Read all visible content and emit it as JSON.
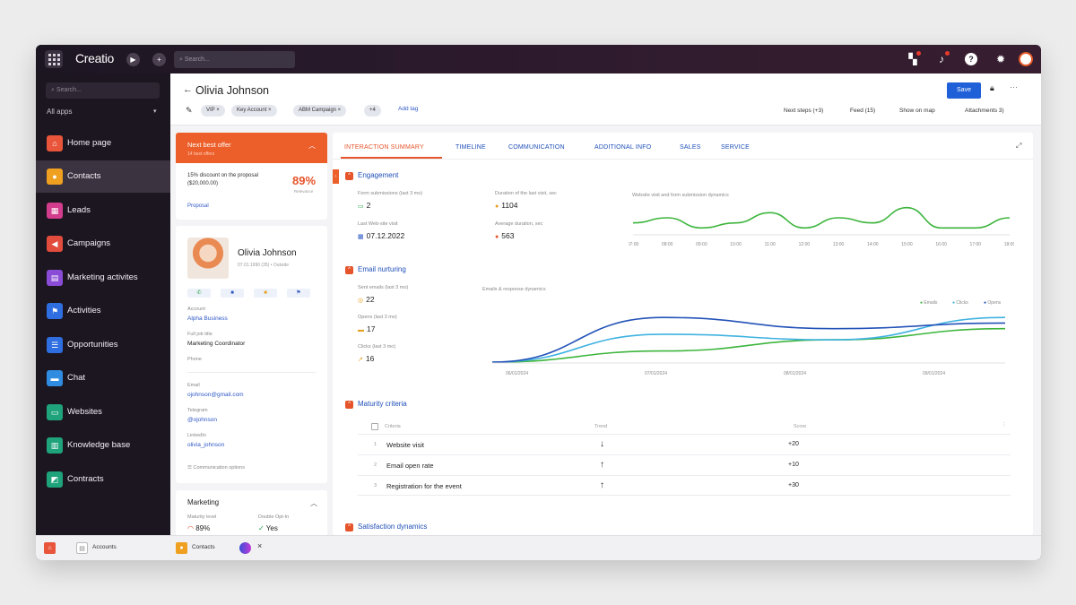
{
  "topbar": {
    "logo": "Creatio",
    "search_placeholder": "Search...",
    "play_glyph": "▶",
    "plus_glyph": "+"
  },
  "sidebar": {
    "search_placeholder": "Search...",
    "all_apps": "All apps",
    "items": [
      {
        "label": "Home page",
        "icon": "home-icon",
        "color": "#e8553b",
        "glyph": "⌂"
      },
      {
        "label": "Contacts",
        "icon": "contact-icon",
        "color": "#f0a020",
        "glyph": "●"
      },
      {
        "label": "Leads",
        "icon": "leads-icon",
        "color": "#d23c8c",
        "glyph": "▦"
      },
      {
        "label": "Campaigns",
        "icon": "megaphone-icon",
        "color": "#e24c3c",
        "glyph": "◀"
      },
      {
        "label": "Marketing activites",
        "icon": "calendar-icon",
        "color": "#8a4bd6",
        "glyph": "▤"
      },
      {
        "label": "Activities",
        "icon": "flag-icon",
        "color": "#2f6ee0",
        "glyph": "⚑"
      },
      {
        "label": "Opportunities",
        "icon": "list-icon",
        "color": "#2f6ee0",
        "glyph": "☰"
      },
      {
        "label": "Chat",
        "icon": "chat-icon",
        "color": "#2f8ce0",
        "glyph": "▬"
      },
      {
        "label": "Websites",
        "icon": "window-icon",
        "color": "#1ea37a",
        "glyph": "▭"
      },
      {
        "label": "Knowledge base",
        "icon": "book-icon",
        "color": "#1ea37a",
        "glyph": "▥"
      },
      {
        "label": "Contracts",
        "icon": "contract-icon",
        "color": "#1ea37a",
        "glyph": "◩"
      }
    ]
  },
  "header": {
    "back": "←",
    "title": "Olivia Johnson",
    "tags": [
      "VIP ×",
      "Key Account ×",
      "ABM Campaign ×",
      "+4"
    ],
    "add_tag": "Add tag",
    "links": [
      "Next steps (+3)",
      "Feed (15)",
      "Show on map",
      "Attachments 3)"
    ],
    "save": "Save"
  },
  "next_best_offer": {
    "title": "Next best offer",
    "subtitle": "14 best offers",
    "offer": "15% discount on the proposal ($20,000.00)",
    "percent": "89%",
    "relevance": "Relevance",
    "proposal": "Proposal"
  },
  "contact": {
    "name": "Olivia Johnson",
    "meta": "07.01.1990 (35) • Outside",
    "fields": [
      {
        "label": "Account",
        "value": "Alpha Business",
        "link": true
      },
      {
        "label": "Full job title",
        "value": "Marketing Coordinator",
        "link": false
      },
      {
        "label": "Phone",
        "value": "",
        "link": false
      },
      {
        "label": "Email",
        "value": "ojohnson@gmail.com",
        "link": true
      },
      {
        "label": "Telegram",
        "value": "@ojohnson",
        "link": true
      },
      {
        "label": "LinkedIn",
        "value": "olivia_johnson",
        "link": true
      }
    ],
    "comm_options": "Communication options"
  },
  "marketing": {
    "title": "Marketing",
    "maturity_label": "Maturity level",
    "maturity_value": "89%",
    "doubleopt_label": "Double Opt-In",
    "doubleopt_value": "Yes"
  },
  "tabs": [
    "INTERACTION SUMMARY",
    "TIMELINE",
    "COMMUNICATION",
    "ADDITIONAL INFO",
    "SALES",
    "SERVICE"
  ],
  "engagement": {
    "title": "Engagement",
    "metrics": [
      {
        "label": "Form submissions (last 3 mo)",
        "value": "2",
        "icon": "form-icon",
        "color": "#2aa34a",
        "glyph": "▭"
      },
      {
        "label": "Duration of the last visit, sec",
        "value": "1104",
        "icon": "clock-icon",
        "color": "#e5a020",
        "glyph": "●"
      },
      {
        "label": "Last Web-site visit",
        "value": "07.12.2022",
        "icon": "calendar-icon",
        "color": "#2f58c6",
        "glyph": "▦"
      },
      {
        "label": "Average duration, sec",
        "value": "563",
        "icon": "clock-icon",
        "color": "#e5542a",
        "glyph": "●"
      }
    ],
    "chart_title": "Website visit and form submission dynamics",
    "hours": [
      "07:00",
      "08:00",
      "09:00",
      "10:00",
      "11:00",
      "12:00",
      "13:00",
      "14:00",
      "15:00",
      "16:00",
      "17:00",
      "18:00"
    ]
  },
  "email": {
    "title": "Email nurturing",
    "metrics": [
      {
        "label": "Sent emails (last 3 mo)",
        "value": "22",
        "icon": "send-icon",
        "color": "#e5a020",
        "glyph": "◎"
      },
      {
        "label": "Opens (last 3 mo)",
        "value": "17",
        "icon": "mail-icon",
        "color": "#e5a020",
        "glyph": "▬"
      },
      {
        "label": "Clicks (last 3 mo)",
        "value": "16",
        "icon": "click-icon",
        "color": "#e5a020",
        "glyph": "↗"
      }
    ],
    "chart_title": "Emails & response dynamics",
    "legend": [
      "Emails",
      "Clicks",
      "Opens"
    ],
    "dates": [
      "06/01/2024",
      "07/01/2024",
      "08/01/2024",
      "09/01/2024"
    ]
  },
  "maturity": {
    "title": "Maturity criteria",
    "headers": {
      "criteria": "Criteria",
      "trend": "Trend",
      "score": "Score"
    },
    "rows": [
      {
        "n": "1",
        "criteria": "Website visit",
        "trend": "↓",
        "score": "+20"
      },
      {
        "n": "2",
        "criteria": "Email open rate",
        "trend": "↑",
        "score": "+10"
      },
      {
        "n": "3",
        "criteria": "Registration for the event",
        "trend": "↑",
        "score": "+30"
      }
    ]
  },
  "satisfaction": {
    "title": "Satisfaction dynamics"
  },
  "bottombar": {
    "items": [
      "Accounts",
      "Contacts"
    ],
    "close": "×"
  },
  "colors": {
    "accent": "#e5542a",
    "link": "#1f4fb8",
    "green": "#3db53d",
    "light_blue": "#3fb2e0",
    "dark_blue": "#2352b8"
  },
  "chart_data": [
    {
      "type": "line",
      "title": "Website visit and form submission dynamics",
      "x": [
        "07:00",
        "08:00",
        "09:00",
        "10:00",
        "11:00",
        "12:00",
        "13:00",
        "14:00",
        "15:00",
        "16:00",
        "17:00",
        "18:00"
      ],
      "series": [
        {
          "values": [
            2,
            3,
            1,
            2,
            4,
            1,
            3,
            2,
            5,
            1,
            1,
            3
          ]
        }
      ]
    },
    {
      "type": "line",
      "title": "Emails & response dynamics",
      "x": [
        "06/01/2024",
        "07/01/2024",
        "08/01/2024",
        "09/01/2024"
      ],
      "series": [
        {
          "name": "Emails",
          "values": [
            0,
            1,
            2,
            3
          ]
        },
        {
          "name": "Clicks",
          "values": [
            0,
            2.5,
            2,
            4
          ]
        },
        {
          "name": "Opens",
          "values": [
            0,
            4,
            3,
            3.5
          ]
        }
      ]
    }
  ]
}
